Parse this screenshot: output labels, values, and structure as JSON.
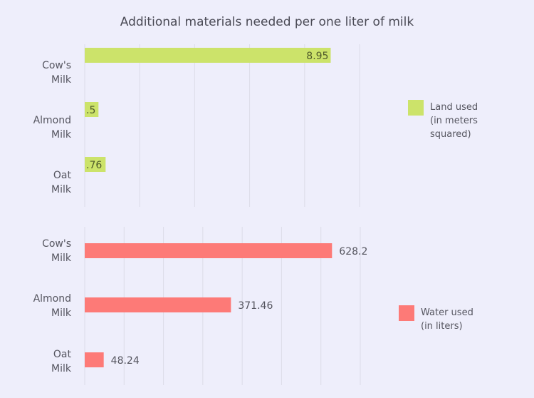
{
  "title": "Additional materials needed per one liter of milk",
  "chart_data": [
    {
      "type": "bar",
      "orientation": "horizontal",
      "categories": [
        [
          "Cow's",
          "Milk"
        ],
        [
          "Almond",
          "Milk"
        ],
        [
          "Oat",
          "Milk"
        ]
      ],
      "series": [
        {
          "name": "Land used (in meters squared)",
          "legend_lines": [
            "Land used",
            "(in meters",
            "squared)"
          ],
          "values": [
            8.95,
            0.5,
            0.76
          ],
          "labels": [
            "8.95",
            ".5",
            ".76"
          ],
          "color": "#cce36a"
        }
      ],
      "xlim": [
        0,
        10
      ],
      "grid_step": 2,
      "grid": true,
      "legend": "right",
      "label_position": "inside-end"
    },
    {
      "type": "bar",
      "orientation": "horizontal",
      "categories": [
        [
          "Cow's",
          "Milk"
        ],
        [
          "Almond",
          "Milk"
        ],
        [
          "Oat",
          "Milk"
        ]
      ],
      "series": [
        {
          "name": "Water used (in liters)",
          "legend_lines": [
            "Water used",
            "(in liters)"
          ],
          "values": [
            628.2,
            371.46,
            48.24
          ],
          "labels": [
            "628.2",
            "371.46",
            "48.24"
          ],
          "color": "#fd7a77"
        }
      ],
      "xlim": [
        0,
        700
      ],
      "grid_step": 100,
      "grid": true,
      "legend": "right",
      "label_position": "outside-end"
    }
  ]
}
